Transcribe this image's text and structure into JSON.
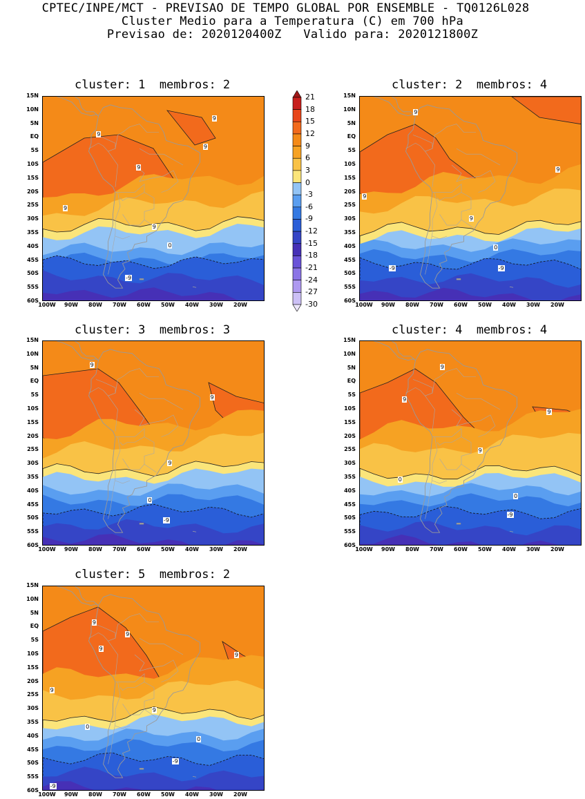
{
  "header": {
    "line1": "CPTEC/INPE/MCT - PREVISAO DE TEMPO GLOBAL POR ENSEMBLE - TQ0126L028",
    "line2": "Cluster Medio para a Temperatura (C) em 700 hPa",
    "line3": "Previsao de: 2020120400Z   Valido para: 2020121800Z"
  },
  "panels": [
    {
      "title": "cluster: 1  membros: 2",
      "contour_labels": [
        {
          "text": "9",
          "fx": 0.42,
          "fy": 0.33
        },
        {
          "text": "9",
          "fx": 0.09,
          "fy": 0.53
        },
        {
          "text": "9",
          "fx": 0.49,
          "fy": 0.62
        },
        {
          "text": "9",
          "fx": 0.72,
          "fy": 0.23
        },
        {
          "text": "9",
          "fx": 0.76,
          "fy": 0.09
        },
        {
          "text": "9",
          "fx": 0.24,
          "fy": 0.17
        },
        {
          "text": "0",
          "fx": 0.56,
          "fy": 0.71
        },
        {
          "text": "-9",
          "fx": 0.37,
          "fy": 0.87
        }
      ]
    },
    {
      "title": "cluster: 2  membros: 4",
      "contour_labels": [
        {
          "text": "9",
          "fx": 0.24,
          "fy": 0.06
        },
        {
          "text": "9",
          "fx": 0.88,
          "fy": 0.34
        },
        {
          "text": "9",
          "fx": 0.01,
          "fy": 0.47
        },
        {
          "text": "9",
          "fx": 0.49,
          "fy": 0.58
        },
        {
          "text": "0",
          "fx": 0.6,
          "fy": 0.72
        },
        {
          "text": "-9",
          "fx": 0.13,
          "fy": 0.82
        },
        {
          "text": "-9",
          "fx": 0.62,
          "fy": 0.82
        }
      ]
    },
    {
      "title": "cluster: 3  membros: 3",
      "contour_labels": [
        {
          "text": "9",
          "fx": 0.21,
          "fy": 0.1
        },
        {
          "text": "9",
          "fx": 0.75,
          "fy": 0.26
        },
        {
          "text": "9",
          "fx": 0.56,
          "fy": 0.58
        },
        {
          "text": "0",
          "fx": 0.47,
          "fy": 0.76
        },
        {
          "text": "-9",
          "fx": 0.54,
          "fy": 0.86
        }
      ]
    },
    {
      "title": "cluster: 4  membros: 4",
      "contour_labels": [
        {
          "text": "9",
          "fx": 0.36,
          "fy": 0.11
        },
        {
          "text": "9",
          "fx": 0.19,
          "fy": 0.27
        },
        {
          "text": "9",
          "fx": 0.84,
          "fy": 0.33
        },
        {
          "text": "9",
          "fx": 0.53,
          "fy": 0.52
        },
        {
          "text": "0",
          "fx": 0.17,
          "fy": 0.66
        },
        {
          "text": "0",
          "fx": 0.69,
          "fy": 0.74
        },
        {
          "text": "-9",
          "fx": 0.66,
          "fy": 0.83
        }
      ]
    },
    {
      "title": "cluster: 5  membros: 2",
      "contour_labels": [
        {
          "text": "9",
          "fx": 0.22,
          "fy": 0.16
        },
        {
          "text": "9",
          "fx": 0.37,
          "fy": 0.22
        },
        {
          "text": "9",
          "fx": 0.25,
          "fy": 0.29
        },
        {
          "text": "9",
          "fx": 0.86,
          "fy": 0.32
        },
        {
          "text": "9",
          "fx": 0.03,
          "fy": 0.49
        },
        {
          "text": "9",
          "fx": 0.49,
          "fy": 0.59
        },
        {
          "text": "0",
          "fx": 0.19,
          "fy": 0.67
        },
        {
          "text": "0",
          "fx": 0.69,
          "fy": 0.73
        },
        {
          "text": "-9",
          "fx": 0.58,
          "fy": 0.84
        },
        {
          "text": "-9",
          "fx": 0.03,
          "fy": 0.96
        }
      ]
    }
  ],
  "y_ticks": [
    "15N",
    "10N",
    "5N",
    "EQ",
    "5S",
    "10S",
    "15S",
    "20S",
    "25S",
    "30S",
    "35S",
    "40S",
    "45S",
    "50S",
    "55S",
    "60S"
  ],
  "x_ticks": [
    "100W",
    "90W",
    "80W",
    "70W",
    "60W",
    "50W",
    "40W",
    "30W",
    "20W"
  ],
  "colorbar": {
    "labels": [
      "21",
      "18",
      "15",
      "12",
      "9",
      "6",
      "3",
      "0",
      "-3",
      "-6",
      "-9",
      "-12",
      "-15",
      "-18",
      "-21",
      "-24",
      "-27",
      "-30"
    ],
    "colors": [
      "#a01818",
      "#c8201e",
      "#e8461a",
      "#f26a1c",
      "#f48a18",
      "#f6a223",
      "#f9c246",
      "#fbe57a",
      "#93c4f5",
      "#5a9ef0",
      "#3479e3",
      "#2a5ed8",
      "#3545c6",
      "#4630b6",
      "#6a53d8",
      "#8b74e6",
      "#ae99f0",
      "#ccc0f6",
      "#ece6fb"
    ]
  }
}
